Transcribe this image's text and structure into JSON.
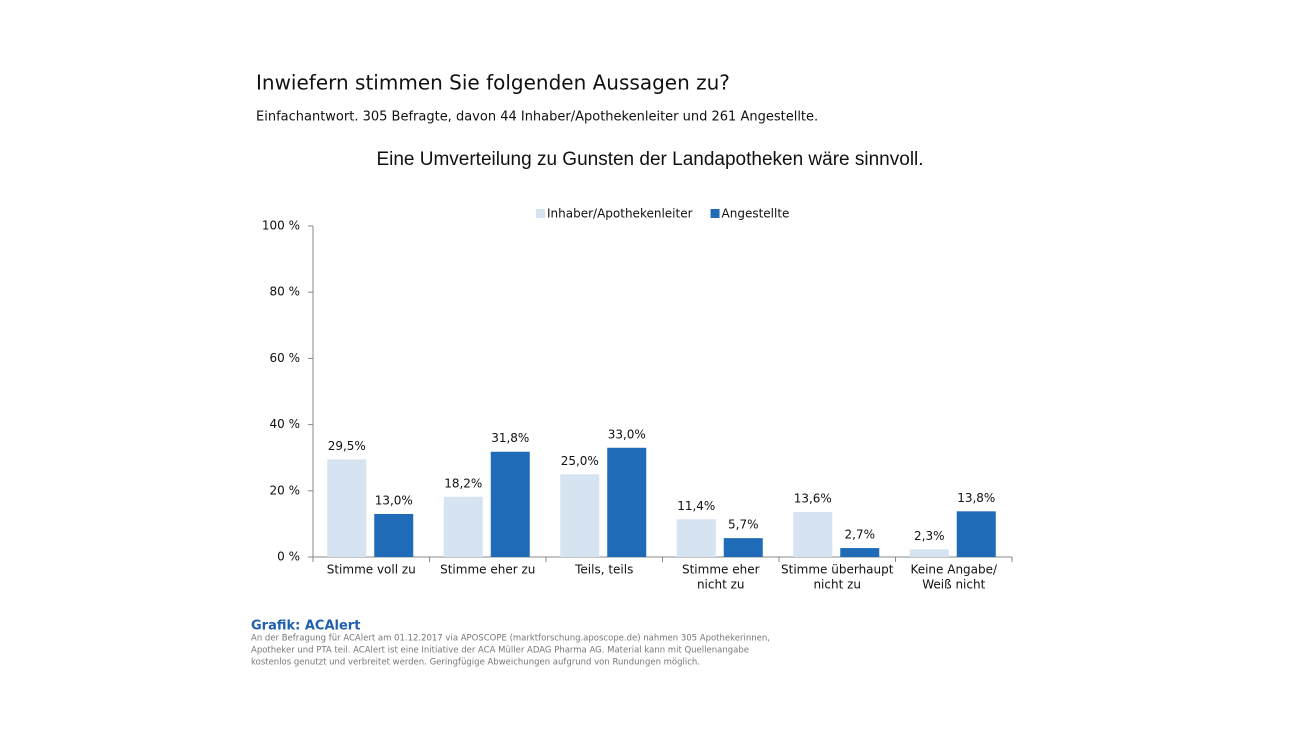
{
  "header": {
    "title": "Inwiefern stimmen Sie folgenden Aussagen zu?",
    "subtitle": "Einfachantwort. 305 Befragte, davon 44 Inhaber/Apothekenleiter und 261 Angestellte."
  },
  "chart_data": {
    "type": "bar",
    "title": "Eine Umverteilung zu Gunsten der Landapotheken wäre sinnvoll.",
    "categories": [
      [
        "Stimme voll zu"
      ],
      [
        "Stimme eher zu"
      ],
      [
        "Teils, teils"
      ],
      [
        "Stimme eher",
        "nicht zu"
      ],
      [
        "Stimme überhaupt",
        "nicht zu"
      ],
      [
        "Keine Angabe/",
        "Weiß nicht"
      ]
    ],
    "series": [
      {
        "name": "Inhaber/Apothekenleiter",
        "color": "#d6e3f1",
        "values": [
          29.5,
          18.2,
          25.0,
          11.4,
          13.6,
          2.3
        ],
        "value_labels": [
          "29,5%",
          "18,2%",
          "25,0%",
          "11,4%",
          "13,6%",
          "2,3%"
        ]
      },
      {
        "name": "Angestellte",
        "color": "#1f6bb7",
        "values": [
          13.0,
          31.8,
          33.0,
          5.7,
          2.7,
          13.8
        ],
        "value_labels": [
          "13,0%",
          "31,8%",
          "33,0%",
          "5,7%",
          "2,7%",
          "13,8%"
        ]
      }
    ],
    "ylim": [
      0,
      100
    ],
    "yticks": [
      {
        "value": 0,
        "label": "0 %"
      },
      {
        "value": 20,
        "label": "20 %"
      },
      {
        "value": 40,
        "label": "40 %"
      },
      {
        "value": 60,
        "label": "60 %"
      },
      {
        "value": 80,
        "label": "80 %"
      },
      {
        "value": 100,
        "label": "100 %"
      }
    ],
    "legend": "top"
  },
  "footer": {
    "source": "Grafik: ACAlert",
    "note": [
      "An der Befragung für ACAlert am 01.12.2017 via APOSCOPE (marktforschung.aposcope.de) nahmen 305 Apothekerinnen,",
      "Apotheker und PTA teil. ACAlert ist eine Initiative der ACA Müller ADAG Pharma AG. Material kann mit Quellenangabe",
      "kostenlos genutzt und verbreitet werden. Geringfügige Abweichungen aufgrund von Rundungen möglich."
    ]
  }
}
